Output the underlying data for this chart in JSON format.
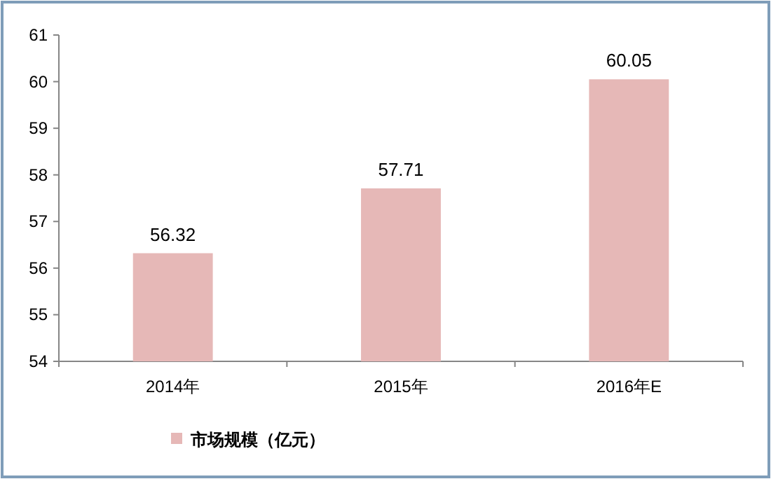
{
  "chart_data": {
    "type": "bar",
    "categories": [
      "2014年",
      "2015年",
      "2016年E"
    ],
    "series": [
      {
        "name": "市场规模（亿元）",
        "color": "#e6b8b7",
        "values": [
          56.32,
          57.71,
          60.05
        ]
      }
    ],
    "ylim": [
      54,
      61
    ],
    "yticks": [
      54,
      55,
      56,
      57,
      58,
      59,
      60,
      61
    ],
    "data_labels": true,
    "legend": "bottom",
    "grid": false
  }
}
